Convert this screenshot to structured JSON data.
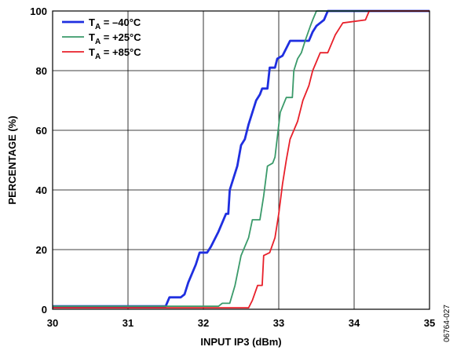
{
  "figure_id": "06764-027",
  "chart_data": {
    "type": "line",
    "title": "",
    "xlabel": "INPUT IP3 (dBm)",
    "ylabel": "PERCENTAGE (%)",
    "xlim": [
      30,
      35
    ],
    "ylim": [
      0,
      100
    ],
    "x_ticks": [
      30,
      31,
      32,
      33,
      34,
      35
    ],
    "y_ticks": [
      0,
      20,
      40,
      60,
      80,
      100
    ],
    "grid": true,
    "legend_position": "top-left",
    "series": [
      {
        "name": "–40°C",
        "legend_prefix": "T",
        "legend_sub": "A",
        "legend_eq": " = ",
        "color": "#1f2fe0",
        "points": [
          [
            30.0,
            1
          ],
          [
            31.5,
            1
          ],
          [
            31.55,
            4
          ],
          [
            31.7,
            4
          ],
          [
            31.75,
            5
          ],
          [
            31.8,
            9
          ],
          [
            31.9,
            15
          ],
          [
            31.95,
            19
          ],
          [
            32.05,
            19
          ],
          [
            32.1,
            21
          ],
          [
            32.2,
            26
          ],
          [
            32.3,
            32
          ],
          [
            32.33,
            32
          ],
          [
            32.35,
            40
          ],
          [
            32.45,
            48
          ],
          [
            32.5,
            55
          ],
          [
            32.55,
            57
          ],
          [
            32.6,
            62
          ],
          [
            32.65,
            66
          ],
          [
            32.7,
            70
          ],
          [
            32.75,
            72
          ],
          [
            32.78,
            74
          ],
          [
            32.85,
            74
          ],
          [
            32.88,
            81
          ],
          [
            32.95,
            81
          ],
          [
            32.98,
            84
          ],
          [
            33.05,
            85
          ],
          [
            33.15,
            90
          ],
          [
            33.4,
            90
          ],
          [
            33.45,
            93
          ],
          [
            33.5,
            95
          ],
          [
            33.55,
            96
          ],
          [
            33.6,
            97
          ],
          [
            33.65,
            100
          ],
          [
            35.0,
            100
          ]
        ]
      },
      {
        "name": "+25°C",
        "legend_prefix": "T",
        "legend_sub": "A",
        "legend_eq": " = ",
        "color": "#3a9a6a",
        "points": [
          [
            30.0,
            1
          ],
          [
            32.2,
            1
          ],
          [
            32.25,
            2
          ],
          [
            32.35,
            2
          ],
          [
            32.42,
            8
          ],
          [
            32.5,
            18
          ],
          [
            32.6,
            24
          ],
          [
            32.65,
            30
          ],
          [
            32.75,
            30
          ],
          [
            32.8,
            38
          ],
          [
            32.85,
            48
          ],
          [
            32.92,
            49
          ],
          [
            32.95,
            51
          ],
          [
            33.02,
            66
          ],
          [
            33.1,
            71
          ],
          [
            33.18,
            71
          ],
          [
            33.2,
            80
          ],
          [
            33.25,
            84
          ],
          [
            33.3,
            86
          ],
          [
            33.35,
            90
          ],
          [
            33.42,
            95
          ],
          [
            33.45,
            97
          ],
          [
            33.5,
            100
          ],
          [
            35.0,
            100
          ]
        ]
      },
      {
        "name": "+85°C",
        "legend_prefix": "T",
        "legend_sub": "A",
        "legend_eq": " = ",
        "color": "#e8202a",
        "points": [
          [
            30.0,
            0.5
          ],
          [
            32.6,
            0.5
          ],
          [
            32.65,
            3
          ],
          [
            32.72,
            8
          ],
          [
            32.78,
            8
          ],
          [
            32.8,
            18
          ],
          [
            32.88,
            19
          ],
          [
            32.95,
            24
          ],
          [
            33.0,
            32
          ],
          [
            33.05,
            42
          ],
          [
            33.1,
            50
          ],
          [
            33.15,
            57
          ],
          [
            33.25,
            63
          ],
          [
            33.32,
            70
          ],
          [
            33.4,
            75
          ],
          [
            33.45,
            80
          ],
          [
            33.5,
            83
          ],
          [
            33.55,
            86
          ],
          [
            33.65,
            86
          ],
          [
            33.75,
            92
          ],
          [
            33.85,
            96
          ],
          [
            34.15,
            97
          ],
          [
            34.2,
            100
          ],
          [
            35.0,
            100
          ]
        ]
      }
    ]
  }
}
